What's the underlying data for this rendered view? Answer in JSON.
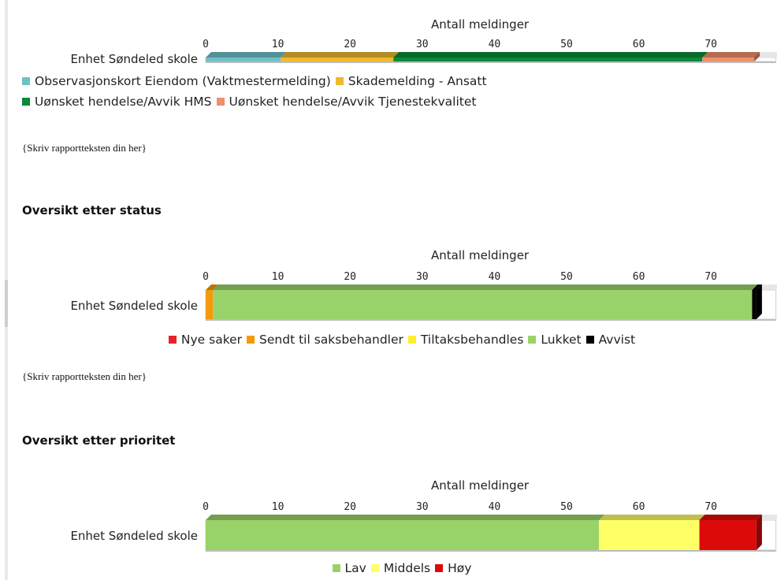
{
  "report_text": "{Skriv rapportteksten din her}",
  "headings": {
    "status": "Oversikt etter status",
    "priority": "Oversikt etter prioritet"
  },
  "chart_data": [
    {
      "id": "type",
      "type": "bar",
      "orientation": "horizontal",
      "stacked": true,
      "x_title": "Antall meldinger",
      "categories": [
        "Enhet Søndeled skole"
      ],
      "xticks": [
        0,
        10,
        20,
        30,
        40,
        50,
        60,
        70
      ],
      "xlim": [
        0,
        79
      ],
      "series": [
        {
          "name": "Observasjonskort Eiendom (Vaktmestermelding)",
          "color": "#6fc1c9",
          "values": [
            10.4
          ]
        },
        {
          "name": "Skademelding - Ansatt",
          "color": "#f0b92f",
          "values": [
            15.6
          ]
        },
        {
          "name": "Uønsket hendelse/Avvik HMS",
          "color": "#0a8a3a",
          "values": [
            42.8
          ]
        },
        {
          "name": "Uønsket hendelse/Avvik Tjenestekvalitet",
          "color": "#ef9069",
          "values": [
            7.2
          ]
        }
      ]
    },
    {
      "id": "status",
      "type": "bar",
      "orientation": "horizontal",
      "stacked": true,
      "x_title": "Antall meldinger",
      "categories": [
        "Enhet Søndeled skole"
      ],
      "xticks": [
        0,
        10,
        20,
        30,
        40,
        50,
        60,
        70
      ],
      "xlim": [
        0,
        79
      ],
      "series": [
        {
          "name": "Nye saker",
          "color": "#e8202a",
          "values": [
            0
          ]
        },
        {
          "name": "Sendt til saksbehandler",
          "color": "#f59a0a",
          "values": [
            1
          ]
        },
        {
          "name": "Tiltaksbehandles",
          "color": "#ffef2b",
          "values": [
            0
          ]
        },
        {
          "name": "Lukket",
          "color": "#9ad26a",
          "values": [
            74.7
          ]
        },
        {
          "name": "Avvist",
          "color": "#000000",
          "values": [
            0.6
          ]
        }
      ]
    },
    {
      "id": "priority",
      "type": "bar",
      "orientation": "horizontal",
      "stacked": true,
      "x_title": "Antall meldinger",
      "categories": [
        "Enhet Søndeled skole"
      ],
      "xticks": [
        0,
        10,
        20,
        30,
        40,
        50,
        60,
        70
      ],
      "xlim": [
        0,
        79
      ],
      "series": [
        {
          "name": "Lav",
          "color": "#9ad26a",
          "values": [
            54.5
          ]
        },
        {
          "name": "Middels",
          "color": "#ffff66",
          "values": [
            13.9
          ]
        },
        {
          "name": "Høy",
          "color": "#dd0a0a",
          "values": [
            7.9
          ]
        }
      ]
    }
  ]
}
